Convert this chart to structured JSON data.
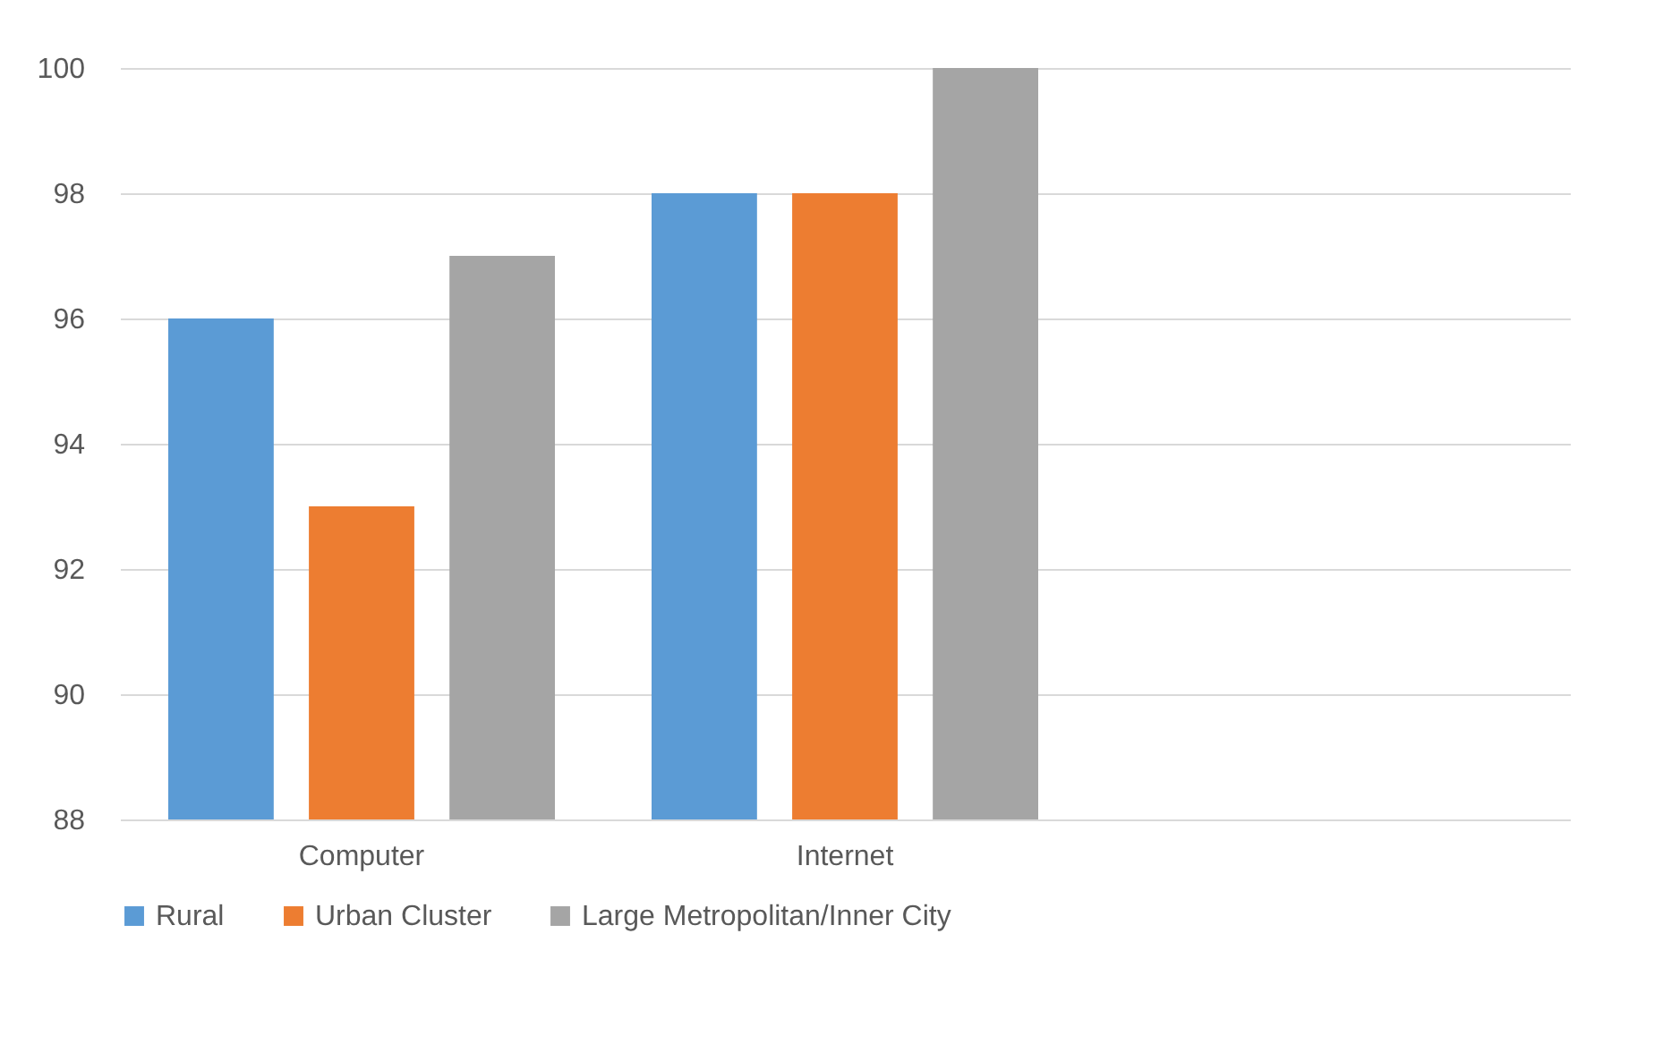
{
  "chart_data": {
    "type": "bar",
    "categories": [
      "Computer",
      "Internet",
      null
    ],
    "series": [
      {
        "name": "Rural",
        "color": "#5b9bd5",
        "values": [
          96,
          98,
          null
        ]
      },
      {
        "name": "Urban Cluster",
        "color": "#ed7d31",
        "values": [
          93,
          98,
          null
        ]
      },
      {
        "name": "Large Metropolitan/Inner City",
        "color": "#a5a5a5",
        "values": [
          97,
          100,
          null
        ]
      }
    ],
    "ylim": [
      88,
      100
    ],
    "yticks": [
      88,
      90,
      92,
      94,
      96,
      98,
      100
    ],
    "grid": "y",
    "legend": "bottom"
  }
}
